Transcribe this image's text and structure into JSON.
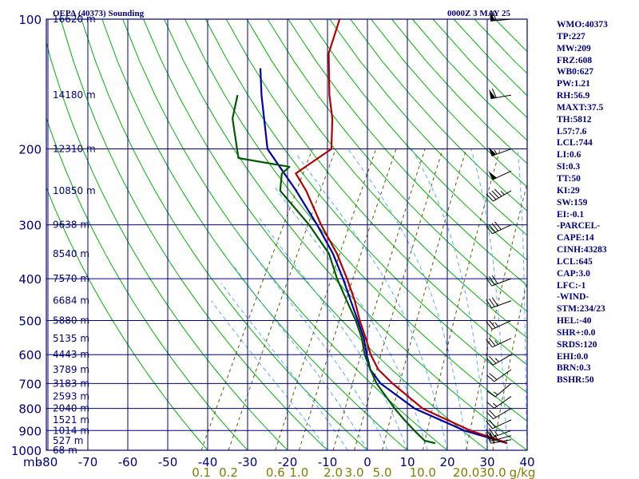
{
  "header": {
    "station_title": "OEPA (40373) Sounding",
    "valid_time": "0000Z  3 MAY 25"
  },
  "indices": [
    "WMO:40373",
    "TP:227",
    "MW:209",
    "FRZ:608",
    "WB0:627",
    "PW:1.21",
    "RH:56.9",
    "MAXT:37.5",
    "TH:5812",
    "L57:7.6",
    "LCL:744",
    "LI:0.6",
    "SI:0.3",
    "TT:50",
    "KI:29",
    "SW:159",
    "EI:-0.1",
    "-PARCEL-",
    "CAPE:14",
    "CINH:43283",
    "LCL:645",
    "CAP:3.0",
    "LFC:-1",
    "-WIND-",
    "STM:234/23",
    "HEL:-40",
    "SHR+:0.0",
    "SRDS:120",
    "EHI:0.0",
    "BRN:0.3",
    "BSHR:50"
  ],
  "colors": {
    "frame": "#00007f",
    "temperature": "#b40000",
    "dewpoint": "#005a00",
    "parcel": "#0000aa",
    "dry_adiabat": "#00b400",
    "moist_adiabat": "#55aaff",
    "mixing_ratio": "#5a5a00",
    "wind_barb": "#000000"
  },
  "chart_data": {
    "type": "skew-t",
    "pressure_axis_label": "mb",
    "pressure_ticks": [
      "100",
      "200",
      "300",
      "400",
      "500",
      "600",
      "700",
      "800",
      "900",
      "1000"
    ],
    "pressure_tick_values": [
      100,
      200,
      300,
      400,
      500,
      600,
      700,
      800,
      900,
      1000
    ],
    "temperature_ticks": [
      "-80",
      "-70",
      "-60",
      "-50",
      "-40",
      "-30",
      "-20",
      "-10",
      "0",
      "10",
      "20",
      "30",
      "40"
    ],
    "temperature_tick_values": [
      -80,
      -70,
      -60,
      -50,
      -40,
      -30,
      -20,
      -10,
      0,
      10,
      20,
      30,
      40
    ],
    "mixing_ratio_labels": [
      "0.1",
      "0.2",
      "0.6",
      "1.0",
      "2.0",
      "3.0",
      "5.0",
      "10.0",
      "20.0",
      "30.0"
    ],
    "mixing_ratio_unit": "g/kg",
    "height_labels": [
      {
        "label": "16620 m",
        "p": 100
      },
      {
        "label": "14180 m",
        "p": 150
      },
      {
        "label": "12310 m",
        "p": 200
      },
      {
        "label": "10850 m",
        "p": 250
      },
      {
        "label": "9638 m",
        "p": 300
      },
      {
        "label": "8540 m",
        "p": 350
      },
      {
        "label": "7570 m",
        "p": 400
      },
      {
        "label": "6684 m",
        "p": 450
      },
      {
        "label": "5880 m",
        "p": 500
      },
      {
        "label": "5135 m",
        "p": 550
      },
      {
        "label": "4443 m",
        "p": 600
      },
      {
        "label": "3789 m",
        "p": 650
      },
      {
        "label": "3183 m",
        "p": 700
      },
      {
        "label": "2593 m",
        "p": 750
      },
      {
        "label": "2040 m",
        "p": 800
      },
      {
        "label": "1521 m",
        "p": 850
      },
      {
        "label": "1014 m",
        "p": 900
      },
      {
        "label": "527 m",
        "p": 950
      },
      {
        "label": "68 m",
        "p": 1000
      }
    ],
    "temperature_profile": [
      {
        "p": 963,
        "t": 34
      },
      {
        "p": 950,
        "t": 32
      },
      {
        "p": 900,
        "t": 23
      },
      {
        "p": 800,
        "t": 8
      },
      {
        "p": 700,
        "t": -3
      },
      {
        "p": 650,
        "t": -8.5
      },
      {
        "p": 600,
        "t": -12.5
      },
      {
        "p": 550,
        "t": -16
      },
      {
        "p": 500,
        "t": -20
      },
      {
        "p": 450,
        "t": -24
      },
      {
        "p": 400,
        "t": -29
      },
      {
        "p": 350,
        "t": -35
      },
      {
        "p": 300,
        "t": -43
      },
      {
        "p": 250,
        "t": -51.5
      },
      {
        "p": 228,
        "t": -56.5
      },
      {
        "p": 220,
        "t": -55
      },
      {
        "p": 200,
        "t": -51
      },
      {
        "p": 170,
        "t": -55
      },
      {
        "p": 150,
        "t": -59
      },
      {
        "p": 120,
        "t": -65
      },
      {
        "p": 100,
        "t": -67
      }
    ],
    "dewpoint_profile": [
      {
        "p": 963,
        "t": 16
      },
      {
        "p": 950,
        "t": 13
      },
      {
        "p": 900,
        "t": 9
      },
      {
        "p": 850,
        "t": 5
      },
      {
        "p": 800,
        "t": 1
      },
      {
        "p": 700,
        "t": -7
      },
      {
        "p": 650,
        "t": -10.5
      },
      {
        "p": 600,
        "t": -14
      },
      {
        "p": 550,
        "t": -17
      },
      {
        "p": 500,
        "t": -21
      },
      {
        "p": 450,
        "t": -26
      },
      {
        "p": 400,
        "t": -31.5
      },
      {
        "p": 350,
        "t": -37
      },
      {
        "p": 300,
        "t": -46
      },
      {
        "p": 250,
        "t": -58
      },
      {
        "p": 228,
        "t": -60
      },
      {
        "p": 220,
        "t": -59
      },
      {
        "p": 210,
        "t": -73
      },
      {
        "p": 170,
        "t": -80
      },
      {
        "p": 150,
        "t": -82
      }
    ],
    "parcel_profile": [
      {
        "p": 963,
        "t": 34
      },
      {
        "p": 950,
        "t": 31.5
      },
      {
        "p": 900,
        "t": 21.5
      },
      {
        "p": 800,
        "t": 6
      },
      {
        "p": 700,
        "t": -6
      },
      {
        "p": 650,
        "t": -10.5
      },
      {
        "p": 600,
        "t": -13.5
      },
      {
        "p": 550,
        "t": -16.5
      },
      {
        "p": 500,
        "t": -20.5
      },
      {
        "p": 450,
        "t": -25
      },
      {
        "p": 400,
        "t": -30
      },
      {
        "p": 350,
        "t": -36
      },
      {
        "p": 300,
        "t": -44
      },
      {
        "p": 250,
        "t": -54
      },
      {
        "p": 200,
        "t": -67
      },
      {
        "p": 150,
        "t": -76
      },
      {
        "p": 130,
        "t": -80
      }
    ],
    "wind_barbs": [
      {
        "p": 945,
        "dir": 260,
        "spd": 20
      },
      {
        "p": 925,
        "dir": 255,
        "spd": 25
      },
      {
        "p": 900,
        "dir": 250,
        "spd": 25
      },
      {
        "p": 850,
        "dir": 245,
        "spd": 20
      },
      {
        "p": 800,
        "dir": 240,
        "spd": 20
      },
      {
        "p": 750,
        "dir": 235,
        "spd": 15
      },
      {
        "p": 700,
        "dir": 230,
        "spd": 15
      },
      {
        "p": 650,
        "dir": 235,
        "spd": 20
      },
      {
        "p": 600,
        "dir": 240,
        "spd": 25
      },
      {
        "p": 550,
        "dir": 245,
        "spd": 25
      },
      {
        "p": 500,
        "dir": 245,
        "spd": 25
      },
      {
        "p": 450,
        "dir": 250,
        "spd": 30
      },
      {
        "p": 400,
        "dir": 250,
        "spd": 30
      },
      {
        "p": 300,
        "dir": 245,
        "spd": 40
      },
      {
        "p": 250,
        "dir": 240,
        "spd": 45
      },
      {
        "p": 225,
        "dir": 245,
        "spd": 50
      },
      {
        "p": 200,
        "dir": 250,
        "spd": 55
      },
      {
        "p": 150,
        "dir": 260,
        "spd": 60
      },
      {
        "p": 100,
        "dir": 265,
        "spd": 60
      }
    ]
  }
}
